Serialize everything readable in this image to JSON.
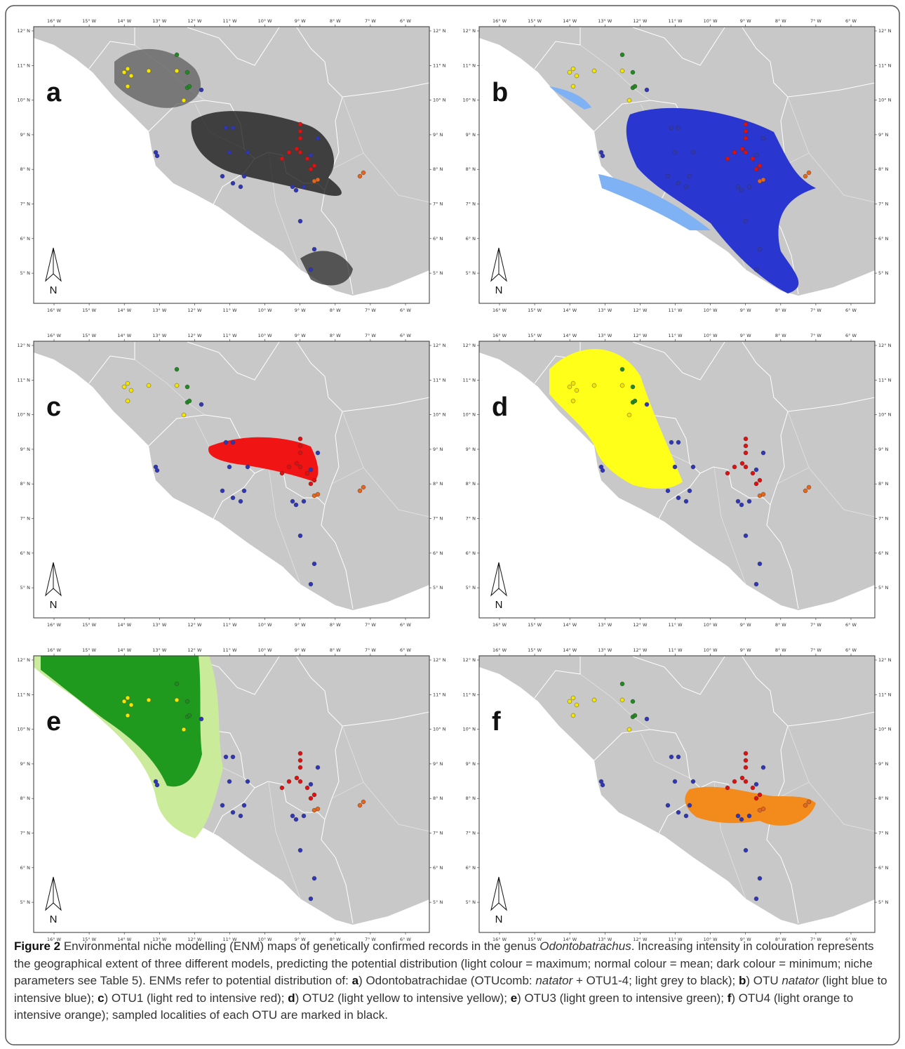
{
  "figure": {
    "panels": [
      "a",
      "b",
      "c",
      "d",
      "e",
      "f"
    ],
    "x_tick_labels": [
      "16° W",
      "15° W",
      "14° W",
      "13° W",
      "12° W",
      "11° W",
      "10° W",
      "9° W",
      "8° W",
      "7° W",
      "6° W"
    ],
    "y_tick_labels": [
      "12° N",
      "11° N",
      "10° N",
      "9° N",
      "8° N",
      "7° N",
      "6° N",
      "5° N"
    ],
    "north_label": "N",
    "caption": [
      "Figure 2",
      " Environmental niche modelling (ENM) maps of genetically confirmed records in the genus ",
      "Odontobatrachus",
      ". Increasing intensity in colouration represents the geographical extent of three different models, predicting the potential distribution (light colour = maximum; normal colour = mean; dark colour = minimum; niche parameters see Table 5). ENMs refer to potential distribution of: ",
      "a",
      ") Odontobatrachidae (OTUcomb: ",
      "natator",
      " + OTU1-4; light grey to black); ",
      "b",
      ") OTU ",
      "natator",
      " (light blue to intensive blue); ",
      "c",
      ") OTU1 (light red to intensive red); ",
      "d",
      ") OTU2 (light yellow to intensive yellow); ",
      "e",
      ") OTU3 (light green to intensive green); ",
      "f",
      ") OTU4 (light orange to intensive orange); sampled localities of each OTU are marked in black."
    ]
  }
}
